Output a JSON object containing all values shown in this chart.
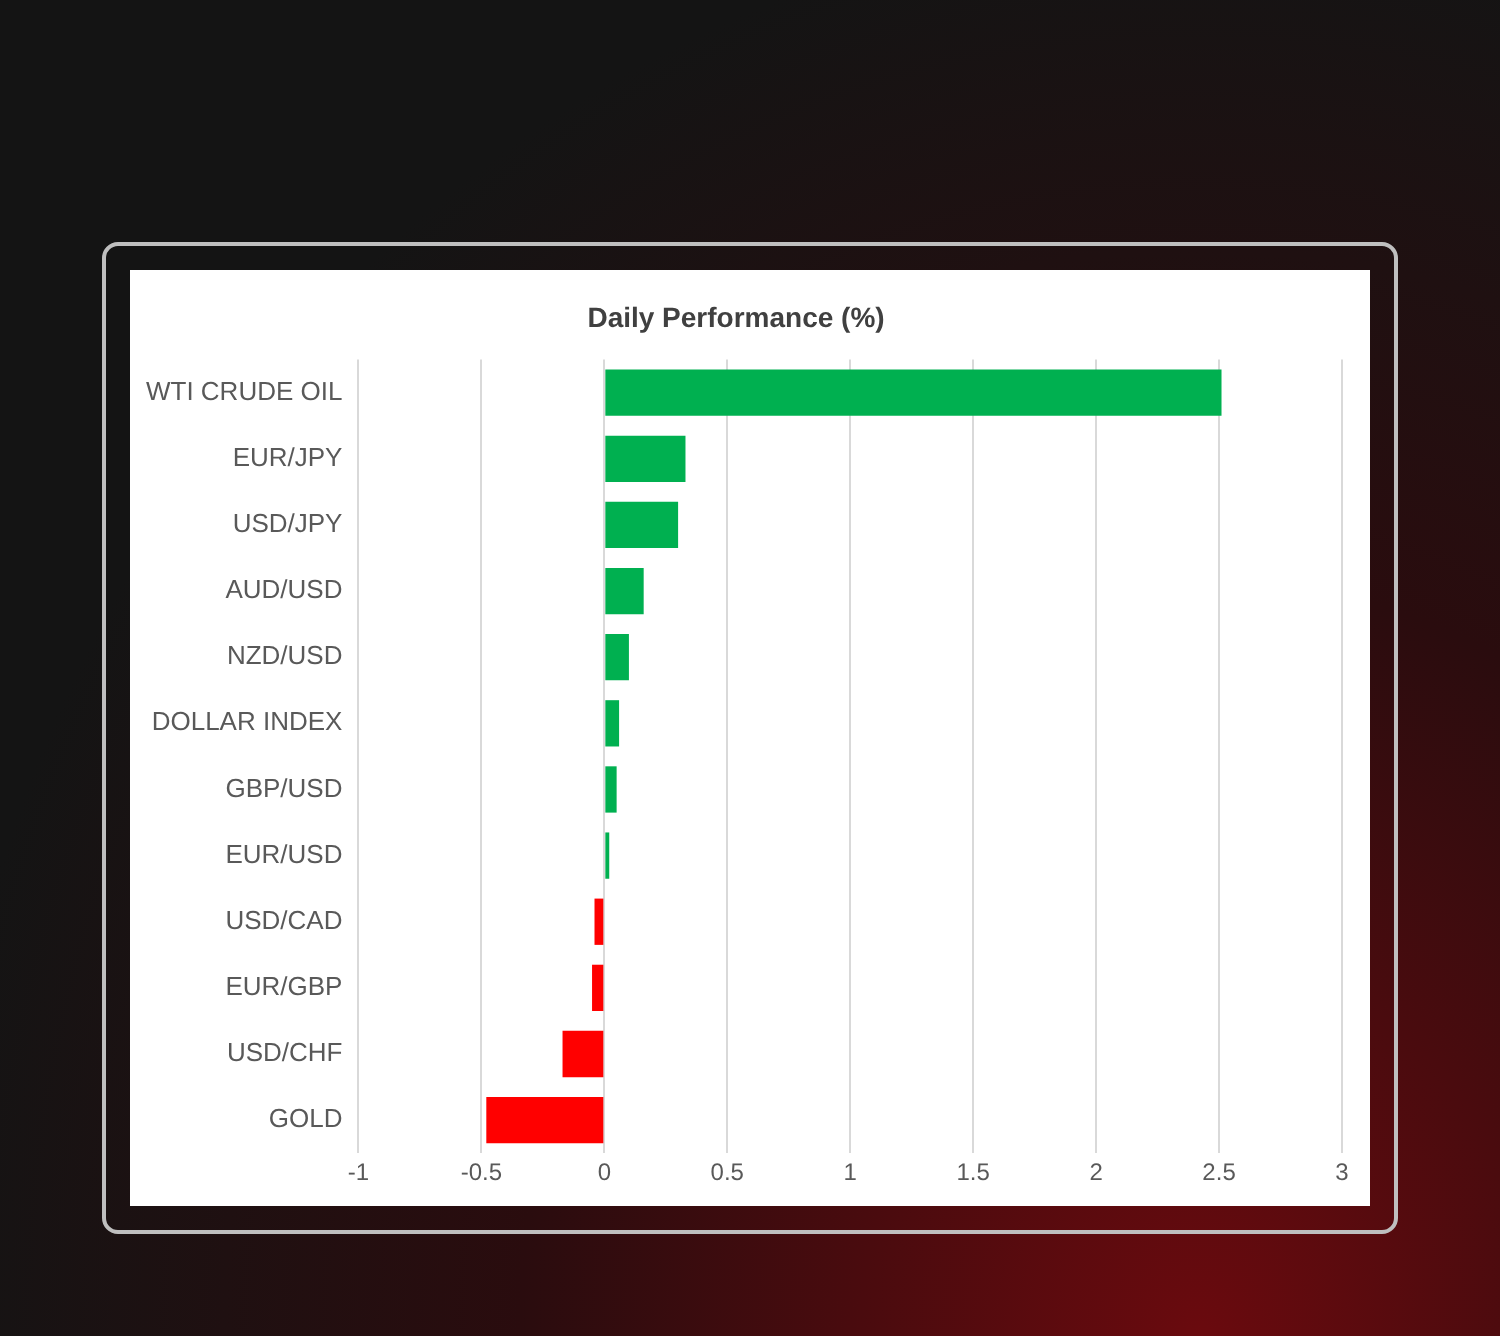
{
  "chart_data": {
    "type": "bar",
    "orientation": "horizontal",
    "title": "Daily Performance (%)",
    "categories": [
      "WTI CRUDE OIL",
      "EUR/JPY",
      "USD/JPY",
      "AUD/USD",
      "NZD/USD",
      "DOLLAR INDEX",
      "GBP/USD",
      "EUR/USD",
      "USD/CAD",
      "EUR/GBP",
      "USD/CHF",
      "GOLD"
    ],
    "values": [
      2.51,
      0.33,
      0.3,
      0.16,
      0.1,
      0.06,
      0.05,
      0.02,
      -0.04,
      -0.05,
      -0.17,
      -0.48
    ],
    "colors": [
      "#00b050",
      "#00b050",
      "#00b050",
      "#00b050",
      "#00b050",
      "#00b050",
      "#00b050",
      "#00b050",
      "#ff0000",
      "#ff0000",
      "#ff0000",
      "#ff0000"
    ],
    "xlim": [
      -1,
      3
    ],
    "xticks": [
      -1,
      -0.5,
      0,
      0.5,
      1,
      1.5,
      2,
      2.5,
      3
    ],
    "grid": "x",
    "legend": false
  }
}
